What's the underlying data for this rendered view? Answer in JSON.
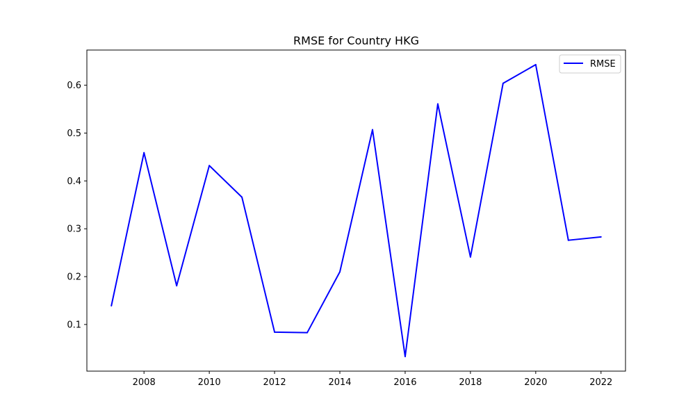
{
  "chart_data": {
    "type": "line",
    "title": "RMSE for Country HKG",
    "xlabel": "",
    "ylabel": "",
    "x": [
      2007,
      2008,
      2009,
      2010,
      2011,
      2012,
      2013,
      2014,
      2015,
      2016,
      2017,
      2018,
      2019,
      2020,
      2021,
      2022
    ],
    "series": [
      {
        "name": "RMSE",
        "color": "#0000ff",
        "values": [
          0.139,
          0.459,
          0.181,
          0.432,
          0.366,
          0.084,
          0.083,
          0.21,
          0.507,
          0.033,
          0.561,
          0.241,
          0.604,
          0.643,
          0.276,
          0.283
        ]
      }
    ],
    "xlim": [
      2006.25,
      2022.75
    ],
    "ylim": [
      0.0025,
      0.6735
    ],
    "xticks": [
      "2008",
      "2010",
      "2012",
      "2014",
      "2016",
      "2018",
      "2020",
      "2022"
    ],
    "yticks": [
      "0.1",
      "0.2",
      "0.3",
      "0.4",
      "0.5",
      "0.6"
    ],
    "grid": false,
    "legend": {
      "position": "top-right",
      "entries": [
        "RMSE"
      ]
    }
  }
}
